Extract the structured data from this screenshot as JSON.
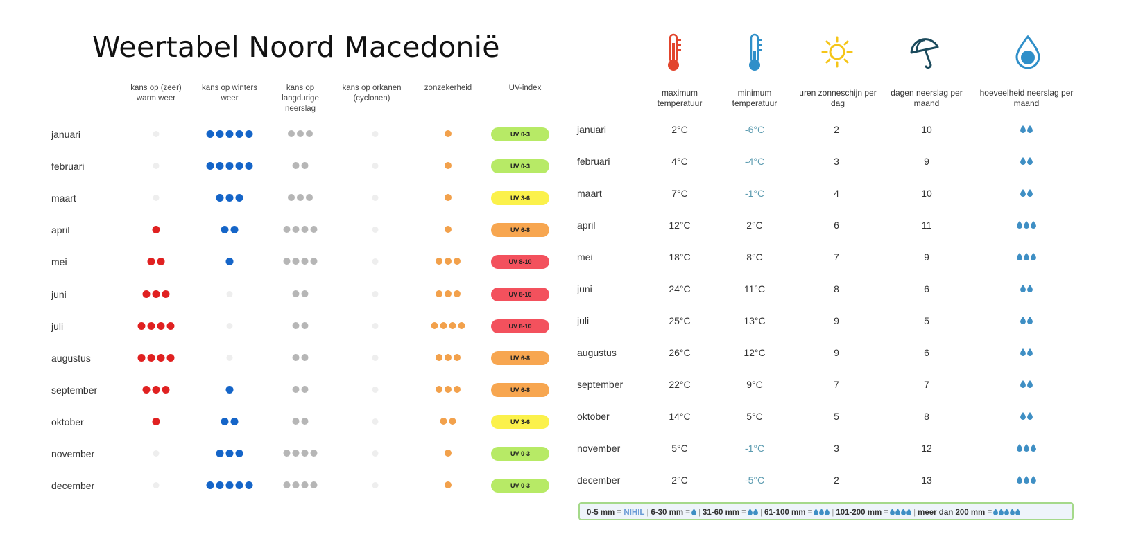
{
  "title": "Weertabel Noord Macedonië",
  "colors": {
    "warm": "#e02121",
    "winter": "#1565c8",
    "rain": "#b6b6b6",
    "sun": "#f2a14c",
    "empty": "#eeeeee",
    "uv_green": "#b7ea66",
    "uv_yellow": "#fbf14b",
    "uv_orange": "#f7a650",
    "uv_red": "#f3515d",
    "drop": "#3f8fc4",
    "min_negative": "#5b9bb0"
  },
  "left_headers": [
    "kans op (zeer) warm weer",
    "kans op winters weer",
    "kans op langdurige neerslag",
    "kans op orkanen (cyclonen)",
    "zonzekerheid",
    "UV-index"
  ],
  "right_headers": [
    "maximum temperatuur",
    "minimum temperatuur",
    "uren zonneschijn per dag",
    "dagen neerslag per maand",
    "hoeveelheid neerslag per maand"
  ],
  "icons": [
    "thermometer-max-icon",
    "thermometer-min-icon",
    "sun-icon",
    "umbrella-icon",
    "raindrop-icon"
  ],
  "months": [
    {
      "name": "januari",
      "warm": 0,
      "winter": 5,
      "rain": 3,
      "cyclone": 0,
      "sun": 1,
      "uv": "UV 0-3",
      "uv_level": "green",
      "max": "2°C",
      "min": "-6°C",
      "min_negative": true,
      "sunhours": "2",
      "raindays": "10",
      "drops": 2
    },
    {
      "name": "februari",
      "warm": 0,
      "winter": 5,
      "rain": 2,
      "cyclone": 0,
      "sun": 1,
      "uv": "UV 0-3",
      "uv_level": "green",
      "max": "4°C",
      "min": "-4°C",
      "min_negative": true,
      "sunhours": "3",
      "raindays": "9",
      "drops": 2
    },
    {
      "name": "maart",
      "warm": 0,
      "winter": 3,
      "rain": 3,
      "cyclone": 0,
      "sun": 1,
      "uv": "UV 3-6",
      "uv_level": "yellow",
      "max": "7°C",
      "min": "-1°C",
      "min_negative": true,
      "sunhours": "4",
      "raindays": "10",
      "drops": 2
    },
    {
      "name": "april",
      "warm": 1,
      "winter": 2,
      "rain": 4,
      "cyclone": 0,
      "sun": 1,
      "uv": "UV 6-8",
      "uv_level": "orange",
      "max": "12°C",
      "min": "2°C",
      "min_negative": false,
      "sunhours": "6",
      "raindays": "11",
      "drops": 3
    },
    {
      "name": "mei",
      "warm": 2,
      "winter": 1,
      "rain": 4,
      "cyclone": 0,
      "sun": 3,
      "uv": "UV 8-10",
      "uv_level": "red",
      "max": "18°C",
      "min": "8°C",
      "min_negative": false,
      "sunhours": "7",
      "raindays": "9",
      "drops": 3
    },
    {
      "name": "juni",
      "warm": 3,
      "winter": 0,
      "rain": 2,
      "cyclone": 0,
      "sun": 3,
      "uv": "UV 8-10",
      "uv_level": "red",
      "max": "24°C",
      "min": "11°C",
      "min_negative": false,
      "sunhours": "8",
      "raindays": "6",
      "drops": 2
    },
    {
      "name": "juli",
      "warm": 4,
      "winter": 0,
      "rain": 2,
      "cyclone": 0,
      "sun": 4,
      "uv": "UV 8-10",
      "uv_level": "red",
      "max": "25°C",
      "min": "13°C",
      "min_negative": false,
      "sunhours": "9",
      "raindays": "5",
      "drops": 2
    },
    {
      "name": "augustus",
      "warm": 4,
      "winter": 0,
      "rain": 2,
      "cyclone": 0,
      "sun": 3,
      "uv": "UV 6-8",
      "uv_level": "orange",
      "max": "26°C",
      "min": "12°C",
      "min_negative": false,
      "sunhours": "9",
      "raindays": "6",
      "drops": 2
    },
    {
      "name": "september",
      "warm": 3,
      "winter": 1,
      "rain": 2,
      "cyclone": 0,
      "sun": 3,
      "uv": "UV 6-8",
      "uv_level": "orange",
      "max": "22°C",
      "min": "9°C",
      "min_negative": false,
      "sunhours": "7",
      "raindays": "7",
      "drops": 2
    },
    {
      "name": "oktober",
      "warm": 1,
      "winter": 2,
      "rain": 2,
      "cyclone": 0,
      "sun": 2,
      "uv": "UV 3-6",
      "uv_level": "yellow",
      "max": "14°C",
      "min": "5°C",
      "min_negative": false,
      "sunhours": "5",
      "raindays": "8",
      "drops": 2
    },
    {
      "name": "november",
      "warm": 0,
      "winter": 3,
      "rain": 4,
      "cyclone": 0,
      "sun": 1,
      "uv": "UV 0-3",
      "uv_level": "green",
      "max": "5°C",
      "min": "-1°C",
      "min_negative": true,
      "sunhours": "3",
      "raindays": "12",
      "drops": 3
    },
    {
      "name": "december",
      "warm": 0,
      "winter": 5,
      "rain": 4,
      "cyclone": 0,
      "sun": 1,
      "uv": "UV 0-3",
      "uv_level": "green",
      "max": "2°C",
      "min": "-5°C",
      "min_negative": true,
      "sunhours": "2",
      "raindays": "13",
      "drops": 3
    }
  ],
  "legend": [
    {
      "range": "0-5 mm =",
      "value": "NIHIL",
      "drops": 0
    },
    {
      "range": "6-30 mm =",
      "value": "",
      "drops": 1
    },
    {
      "range": "31-60 mm =",
      "value": "",
      "drops": 2
    },
    {
      "range": "61-100 mm =",
      "value": "",
      "drops": 3
    },
    {
      "range": "101-200 mm =",
      "value": "",
      "drops": 4
    },
    {
      "range": "meer dan 200 mm =",
      "value": "",
      "drops": 5
    }
  ]
}
